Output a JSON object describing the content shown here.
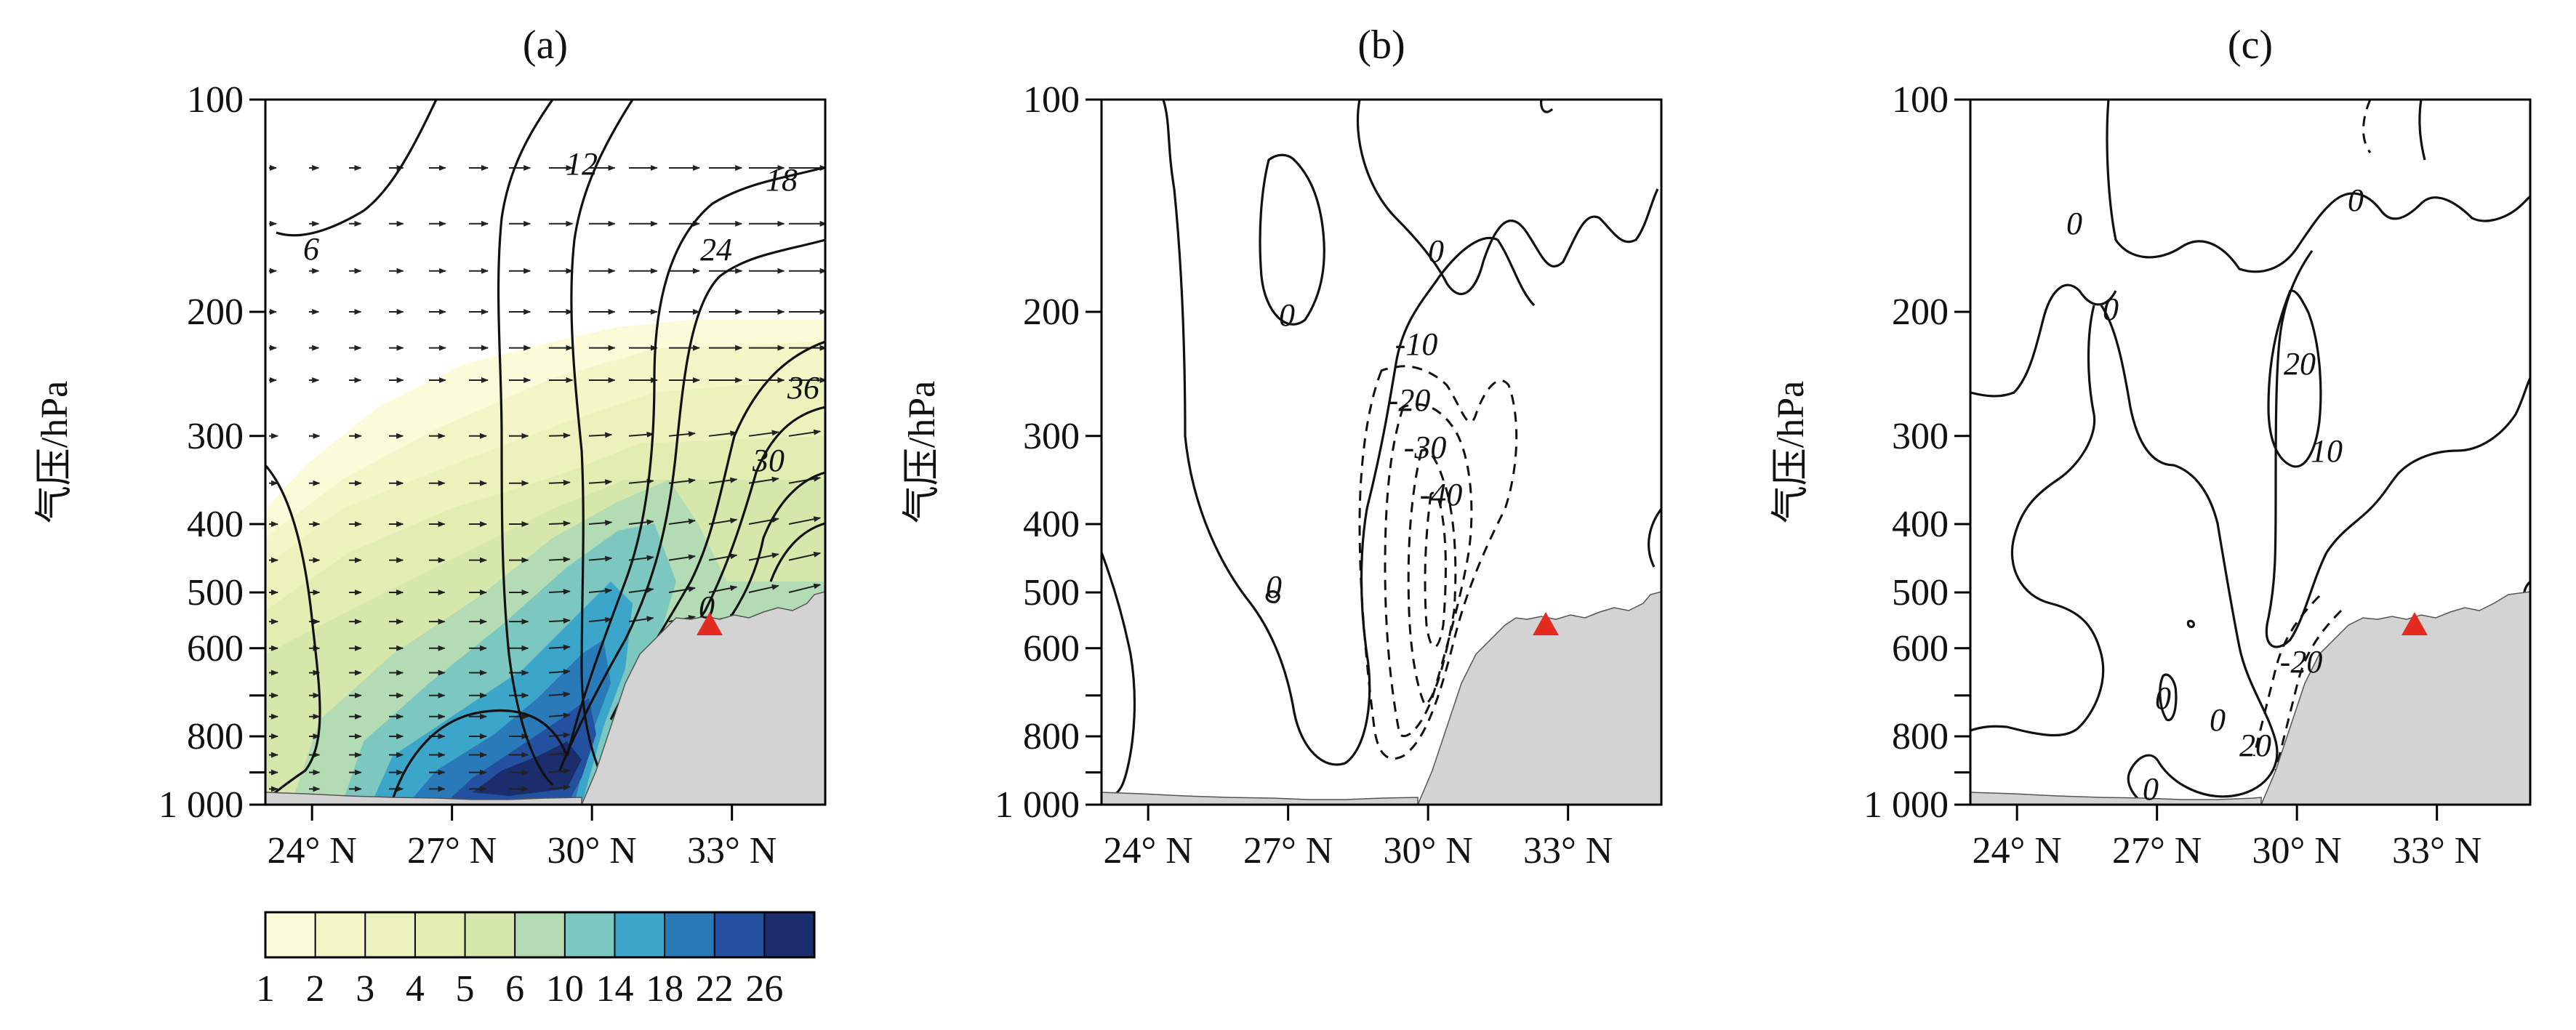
{
  "chart_data": [
    {
      "type": "filled-contour",
      "panel": "a",
      "title": "(a)",
      "ylabel": "气压/hPa",
      "y_scale": "log",
      "ylim": [
        1000,
        100
      ],
      "y_ticks": [
        100,
        200,
        300,
        400,
        500,
        600,
        800,
        1000
      ],
      "y_tick_labels": [
        "100",
        "200",
        "300",
        "400",
        "500",
        "600",
        "800",
        "1 000"
      ],
      "x_ticks": [
        24,
        27,
        30,
        33
      ],
      "x_tick_labels": [
        "24° N",
        "27° N",
        "30° N",
        "33° N"
      ],
      "xlim": [
        23,
        35
      ],
      "contour_labels": [
        "6",
        "12",
        "18",
        "24",
        "30",
        "36",
        "0"
      ],
      "colorbar_levels": [
        "1",
        "2",
        "3",
        "4",
        "5",
        "6",
        "10",
        "14",
        "18",
        "22",
        "26"
      ],
      "colorbar_colors": [
        "#fbfbd9",
        "#f4f6c8",
        "#ecf2bb",
        "#e2edb1",
        "#d6e7ab",
        "#b4dcb4",
        "#7cc8c0",
        "#3ba6c9",
        "#2a79b8",
        "#24519f",
        "#1c2d6e"
      ],
      "terrain_color": "#d3d3d3",
      "marker_color": "#e32b22"
    },
    {
      "type": "contour",
      "panel": "b",
      "title": "(b)",
      "ylabel": "气压/hPa",
      "y_scale": "log",
      "ylim": [
        1000,
        100
      ],
      "y_ticks": [
        100,
        200,
        300,
        400,
        500,
        600,
        800,
        1000
      ],
      "y_tick_labels": [
        "100",
        "200",
        "300",
        "400",
        "500",
        "600",
        "800",
        "1 000"
      ],
      "x_ticks": [
        24,
        27,
        30,
        33
      ],
      "x_tick_labels": [
        "24° N",
        "27° N",
        "30° N",
        "33° N"
      ],
      "xlim": [
        23,
        35
      ],
      "contour_labels": [
        "0",
        "0",
        "-10",
        "-20",
        "-30",
        "-40",
        "0"
      ],
      "terrain_color": "#d3d3d3",
      "marker_color": "#e32b22"
    },
    {
      "type": "contour",
      "panel": "c",
      "title": "(c)",
      "ylabel": "气压/hPa",
      "y_scale": "log",
      "ylim": [
        1000,
        100
      ],
      "y_ticks": [
        100,
        200,
        300,
        400,
        500,
        600,
        800,
        1000
      ],
      "y_tick_labels": [
        "100",
        "200",
        "300",
        "400",
        "500",
        "600",
        "800",
        "1 000"
      ],
      "x_ticks": [
        24,
        27,
        30,
        33
      ],
      "x_tick_labels": [
        "24° N",
        "27° N",
        "30° N",
        "33° N"
      ],
      "xlim": [
        23,
        35
      ],
      "contour_labels": [
        "0",
        "0",
        "0",
        "20",
        "10",
        "0",
        "-20",
        "20",
        "0",
        "0"
      ],
      "terrain_color": "#d3d3d3",
      "marker_color": "#e32b22"
    }
  ]
}
